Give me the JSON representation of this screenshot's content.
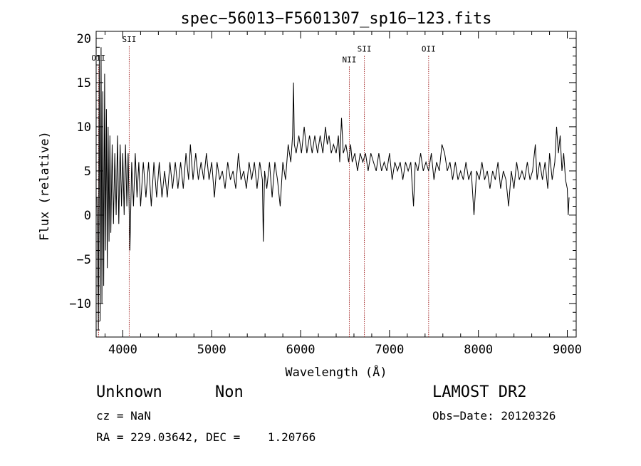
{
  "chart_data": {
    "type": "line",
    "title": "spec−56013−F5601307_sp16−123.fits",
    "xlabel": "Wavelength (Å)",
    "ylabel": "Flux (relative)",
    "xlim": [
      3700,
      9100
    ],
    "ylim": [
      -13.8,
      20.8
    ],
    "x_ticks": [
      4000,
      5000,
      6000,
      7000,
      8000,
      9000
    ],
    "x_tick_labels": [
      "4000",
      "5000",
      "6000",
      "7000",
      "8000",
      "9000"
    ],
    "y_ticks": [
      -10,
      -5,
      0,
      5,
      10,
      15,
      20
    ],
    "y_tick_labels": [
      "−10",
      "−5",
      "0",
      "5",
      "10",
      "15",
      "20"
    ],
    "grid": false,
    "line_color": "#000000",
    "marker_color": "#a52a2a",
    "emission_lines": [
      {
        "label": "OII",
        "wavelength": 3727,
        "label_flux": 17.5
      },
      {
        "label": "SII",
        "wavelength": 4072,
        "label_flux": 19.6
      },
      {
        "label": "NII",
        "wavelength": 6548,
        "label_flux": 17.3
      },
      {
        "label": "SII",
        "wavelength": 6717,
        "label_flux": 18.5
      },
      {
        "label": "OII",
        "wavelength": 7440,
        "label_flux": 18.5
      }
    ],
    "series": [
      {
        "points": [
          [
            3710,
            2
          ],
          [
            3725,
            -13
          ],
          [
            3735,
            18
          ],
          [
            3745,
            -12
          ],
          [
            3755,
            19
          ],
          [
            3765,
            -10
          ],
          [
            3775,
            14
          ],
          [
            3785,
            -8
          ],
          [
            3795,
            16
          ],
          [
            3805,
            -4
          ],
          [
            3815,
            12
          ],
          [
            3825,
            -6
          ],
          [
            3835,
            10
          ],
          [
            3845,
            -3
          ],
          [
            3855,
            9
          ],
          [
            3865,
            -2
          ],
          [
            3880,
            8
          ],
          [
            3895,
            -1
          ],
          [
            3910,
            7
          ],
          [
            3925,
            0
          ],
          [
            3940,
            9
          ],
          [
            3955,
            -1
          ],
          [
            3970,
            8
          ],
          [
            3985,
            1
          ],
          [
            4000,
            7
          ],
          [
            4015,
            0
          ],
          [
            4030,
            8
          ],
          [
            4045,
            1
          ],
          [
            4060,
            7
          ],
          [
            4080,
            -4
          ],
          [
            4100,
            6
          ],
          [
            4120,
            1
          ],
          [
            4140,
            7
          ],
          [
            4160,
            2
          ],
          [
            4180,
            6
          ],
          [
            4200,
            1
          ],
          [
            4230,
            6
          ],
          [
            4260,
            2
          ],
          [
            4290,
            6
          ],
          [
            4320,
            1
          ],
          [
            4350,
            6
          ],
          [
            4380,
            2
          ],
          [
            4410,
            6
          ],
          [
            4440,
            2
          ],
          [
            4470,
            5
          ],
          [
            4500,
            2
          ],
          [
            4530,
            6
          ],
          [
            4560,
            3
          ],
          [
            4590,
            6
          ],
          [
            4620,
            3
          ],
          [
            4650,
            6
          ],
          [
            4680,
            3
          ],
          [
            4710,
            7
          ],
          [
            4740,
            4
          ],
          [
            4760,
            8
          ],
          [
            4790,
            4
          ],
          [
            4820,
            7
          ],
          [
            4850,
            4
          ],
          [
            4880,
            6
          ],
          [
            4910,
            4
          ],
          [
            4940,
            7
          ],
          [
            4970,
            4
          ],
          [
            5000,
            6
          ],
          [
            5030,
            2
          ],
          [
            5060,
            6
          ],
          [
            5090,
            4
          ],
          [
            5120,
            5
          ],
          [
            5150,
            3
          ],
          [
            5180,
            6
          ],
          [
            5210,
            4
          ],
          [
            5240,
            5
          ],
          [
            5270,
            3
          ],
          [
            5300,
            7
          ],
          [
            5330,
            4
          ],
          [
            5360,
            5
          ],
          [
            5390,
            3
          ],
          [
            5420,
            6
          ],
          [
            5450,
            4
          ],
          [
            5480,
            6
          ],
          [
            5510,
            3
          ],
          [
            5540,
            6
          ],
          [
            5570,
            4
          ],
          [
            5580,
            -3
          ],
          [
            5595,
            5
          ],
          [
            5620,
            3
          ],
          [
            5650,
            6
          ],
          [
            5680,
            2
          ],
          [
            5710,
            6
          ],
          [
            5740,
            4
          ],
          [
            5770,
            1
          ],
          [
            5800,
            6
          ],
          [
            5830,
            4
          ],
          [
            5860,
            8
          ],
          [
            5890,
            6
          ],
          [
            5910,
            9
          ],
          [
            5920,
            15
          ],
          [
            5930,
            8
          ],
          [
            5950,
            7
          ],
          [
            5980,
            9
          ],
          [
            6010,
            7
          ],
          [
            6040,
            10
          ],
          [
            6070,
            7
          ],
          [
            6100,
            9
          ],
          [
            6130,
            7
          ],
          [
            6160,
            9
          ],
          [
            6190,
            7
          ],
          [
            6220,
            9
          ],
          [
            6250,
            7
          ],
          [
            6280,
            10
          ],
          [
            6300,
            8
          ],
          [
            6320,
            9
          ],
          [
            6345,
            7
          ],
          [
            6370,
            8
          ],
          [
            6400,
            7
          ],
          [
            6425,
            9
          ],
          [
            6440,
            6
          ],
          [
            6460,
            11
          ],
          [
            6480,
            7
          ],
          [
            6510,
            8
          ],
          [
            6540,
            6
          ],
          [
            6563,
            8
          ],
          [
            6580,
            6
          ],
          [
            6610,
            7
          ],
          [
            6640,
            5
          ],
          [
            6670,
            7
          ],
          [
            6700,
            6
          ],
          [
            6730,
            7
          ],
          [
            6760,
            5
          ],
          [
            6790,
            7
          ],
          [
            6820,
            6
          ],
          [
            6850,
            5
          ],
          [
            6880,
            7
          ],
          [
            6910,
            5
          ],
          [
            6940,
            6
          ],
          [
            6970,
            5
          ],
          [
            7000,
            7
          ],
          [
            7030,
            4
          ],
          [
            7060,
            6
          ],
          [
            7090,
            5
          ],
          [
            7120,
            6
          ],
          [
            7150,
            4
          ],
          [
            7180,
            6
          ],
          [
            7210,
            5
          ],
          [
            7240,
            6
          ],
          [
            7270,
            1
          ],
          [
            7290,
            6
          ],
          [
            7320,
            5
          ],
          [
            7350,
            7
          ],
          [
            7380,
            5
          ],
          [
            7410,
            6
          ],
          [
            7440,
            5
          ],
          [
            7470,
            7
          ],
          [
            7500,
            4
          ],
          [
            7530,
            6
          ],
          [
            7560,
            5
          ],
          [
            7590,
            8
          ],
          [
            7620,
            7
          ],
          [
            7650,
            5
          ],
          [
            7680,
            6
          ],
          [
            7710,
            4
          ],
          [
            7740,
            6
          ],
          [
            7770,
            4
          ],
          [
            7800,
            5
          ],
          [
            7830,
            4
          ],
          [
            7860,
            6
          ],
          [
            7890,
            4
          ],
          [
            7920,
            5
          ],
          [
            7950,
            0
          ],
          [
            7980,
            5
          ],
          [
            8010,
            4
          ],
          [
            8040,
            6
          ],
          [
            8070,
            4
          ],
          [
            8100,
            5
          ],
          [
            8130,
            3
          ],
          [
            8160,
            5
          ],
          [
            8190,
            4
          ],
          [
            8220,
            6
          ],
          [
            8250,
            3
          ],
          [
            8280,
            5
          ],
          [
            8310,
            4
          ],
          [
            8340,
            1
          ],
          [
            8370,
            5
          ],
          [
            8400,
            3
          ],
          [
            8430,
            6
          ],
          [
            8460,
            4
          ],
          [
            8490,
            5
          ],
          [
            8520,
            4
          ],
          [
            8550,
            6
          ],
          [
            8580,
            4
          ],
          [
            8610,
            5
          ],
          [
            8640,
            8
          ],
          [
            8660,
            4
          ],
          [
            8690,
            6
          ],
          [
            8720,
            4
          ],
          [
            8750,
            6
          ],
          [
            8780,
            3
          ],
          [
            8800,
            7
          ],
          [
            8830,
            4
          ],
          [
            8860,
            6
          ],
          [
            8880,
            10
          ],
          [
            8900,
            7
          ],
          [
            8920,
            9
          ],
          [
            8940,
            5
          ],
          [
            8960,
            7
          ],
          [
            8980,
            4
          ],
          [
            9000,
            3
          ],
          [
            9010,
            0
          ],
          [
            9020,
            2
          ]
        ]
      }
    ]
  },
  "info": {
    "object_type": "Unknown",
    "object_subclass": "Non",
    "survey": "LAMOST DR2",
    "cz": "cz = NaN",
    "obs_date": "Obs−Date: 20120326",
    "radec": "RA = 229.03642, DEC =    1.20766"
  }
}
